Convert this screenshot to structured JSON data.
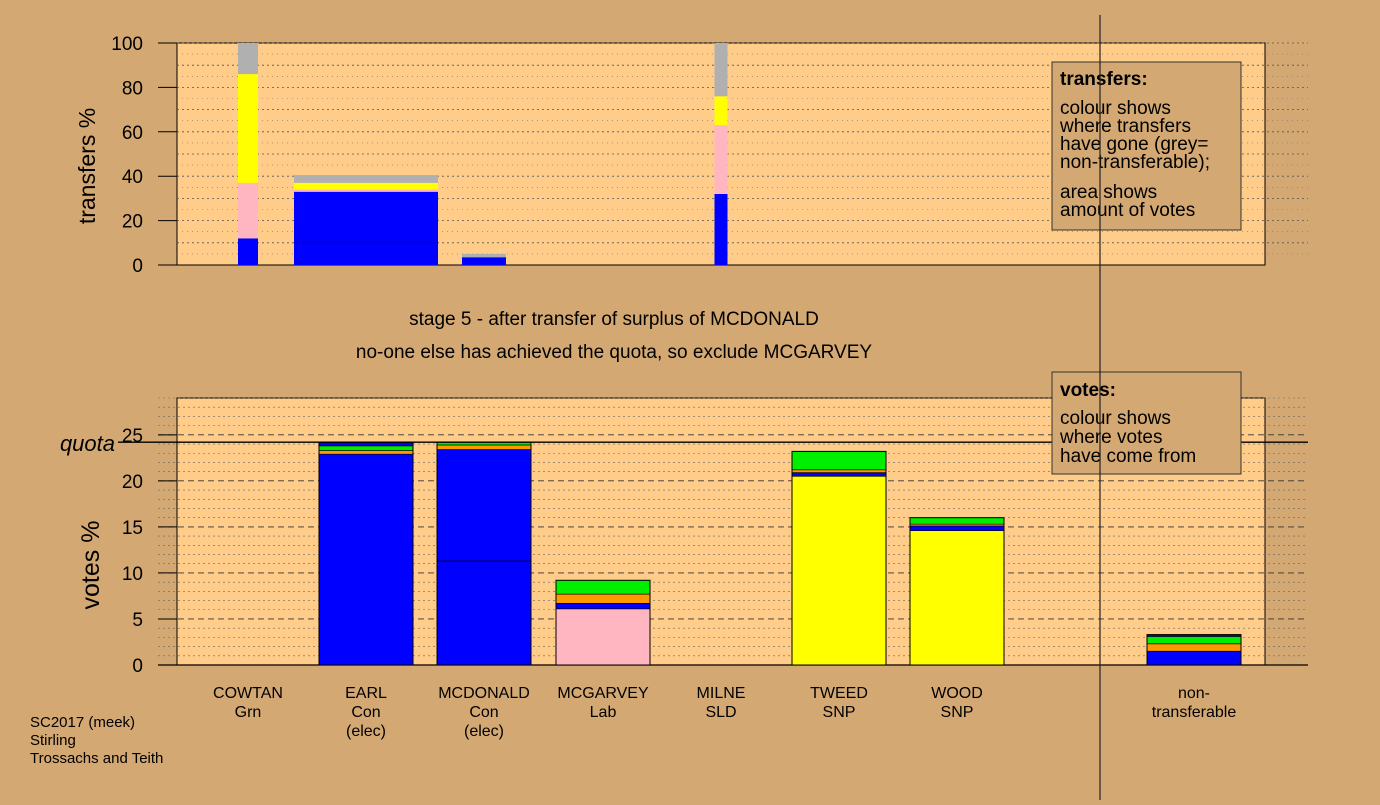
{
  "stage_title": "stage 5 - after transfer of surplus of MCDONALD",
  "stage_subtitle": "no-one else has achieved the quota, so exclude MCGARVEY",
  "footer": [
    "SC2017 (meek)",
    "Stirling",
    "Trossachs and Teith"
  ],
  "legend_transfers": {
    "title": "transfers:",
    "lines1": [
      "colour shows",
      "where transfers",
      "have gone (grey=",
      "non-transferable);"
    ],
    "lines2": [
      "area shows",
      "amount of votes"
    ]
  },
  "legend_votes": {
    "title": "votes:",
    "lines": [
      "colour shows",
      "where votes",
      "have come from"
    ]
  },
  "colors": {
    "Con": "#0000ff",
    "Lab": "#ffb6c1",
    "SNP": "#ffff00",
    "Grn": "#00ee00",
    "SLD": "#ff9900",
    "nontransferable": "#b0b0b0",
    "plot_bg": "#ffcc8a",
    "page_bg": "#d4a872"
  },
  "chart_data": [
    {
      "type": "bar",
      "name": "transfers",
      "ylabel": "transfers %",
      "ylim": [
        0,
        100
      ],
      "yticks": [
        0,
        20,
        40,
        60,
        80,
        100
      ],
      "grid": true,
      "bars": [
        {
          "candidate": "COWTAN",
          "segments": [
            {
              "color": "Con",
              "value": 12
            },
            {
              "color": "Lab",
              "value": 25
            },
            {
              "color": "SNP",
              "value": 49
            },
            {
              "color": "nontransferable",
              "value": 14
            }
          ]
        },
        {
          "candidate": "EARL+MCDONALD",
          "segments": [
            {
              "color": "Con",
              "value": 33
            },
            {
              "color": "Lab",
              "value": 1
            },
            {
              "color": "SNP",
              "value": 3
            },
            {
              "color": "nontransferable",
              "value": 3.5
            }
          ]
        },
        {
          "candidate": "MCDONALD",
          "segments": [
            {
              "color": "Con",
              "value": 3.5
            },
            {
              "color": "nontransferable",
              "value": 1.5
            }
          ]
        },
        {
          "candidate": "MILNE",
          "segments": [
            {
              "color": "Con",
              "value": 32
            },
            {
              "color": "Lab",
              "value": 31
            },
            {
              "color": "SNP",
              "value": 13
            },
            {
              "color": "nontransferable",
              "value": 24
            }
          ]
        }
      ]
    },
    {
      "type": "bar",
      "name": "votes",
      "ylabel": "votes %",
      "quota_label": "quota",
      "quota": 24.2,
      "ylim": [
        0,
        29
      ],
      "yticks": [
        0,
        5,
        10,
        15,
        20,
        25
      ],
      "grid": true,
      "categories": [
        {
          "name": "COWTAN",
          "party": "Grn",
          "elected": ""
        },
        {
          "name": "EARL",
          "party": "Con",
          "elected": "(elec)"
        },
        {
          "name": "MCDONALD",
          "party": "Con",
          "elected": "(elec)"
        },
        {
          "name": "MCGARVEY",
          "party": "Lab",
          "elected": ""
        },
        {
          "name": "MILNE",
          "party": "SLD",
          "elected": ""
        },
        {
          "name": "TWEED",
          "party": "SNP",
          "elected": ""
        },
        {
          "name": "WOOD",
          "party": "SNP",
          "elected": ""
        },
        {
          "name": "non-",
          "party": "transferable",
          "elected": ""
        }
      ],
      "bars": [
        {
          "candidate": "COWTAN",
          "segments": []
        },
        {
          "candidate": "EARL",
          "segments": [
            {
              "color": "Con",
              "value": 22.9
            },
            {
              "color": "SLD",
              "value": 0.4
            },
            {
              "color": "Grn",
              "value": 0.5
            },
            {
              "color": "Con",
              "value": 0.4
            }
          ]
        },
        {
          "candidate": "MCDONALD",
          "segments": [
            {
              "color": "Con",
              "value": 11.3
            },
            {
              "color": "Con",
              "value": 12.1
            },
            {
              "color": "SLD",
              "value": 0.5
            },
            {
              "color": "Grn",
              "value": 0.3
            }
          ]
        },
        {
          "candidate": "MCGARVEY",
          "segments": [
            {
              "color": "Lab",
              "value": 6.1
            },
            {
              "color": "Con",
              "value": 0.6
            },
            {
              "color": "SLD",
              "value": 1.0
            },
            {
              "color": "Grn",
              "value": 1.5
            }
          ]
        },
        {
          "candidate": "MILNE",
          "segments": []
        },
        {
          "candidate": "TWEED",
          "segments": [
            {
              "color": "SNP",
              "value": 20.5
            },
            {
              "color": "Con",
              "value": 0.4
            },
            {
              "color": "SLD",
              "value": 0.3
            },
            {
              "color": "Grn",
              "value": 2.0
            }
          ]
        },
        {
          "candidate": "WOOD",
          "segments": [
            {
              "color": "SNP",
              "value": 14.6
            },
            {
              "color": "Con",
              "value": 0.5
            },
            {
              "color": "SLD",
              "value": 0.2
            },
            {
              "color": "Grn",
              "value": 0.7
            }
          ]
        },
        {
          "candidate": "non-transferable",
          "segments": [
            {
              "color": "Con",
              "value": 1.5
            },
            {
              "color": "SLD",
              "value": 0.8
            },
            {
              "color": "Grn",
              "value": 0.8
            },
            {
              "color": "Con",
              "value": 0.2
            }
          ]
        }
      ]
    }
  ]
}
